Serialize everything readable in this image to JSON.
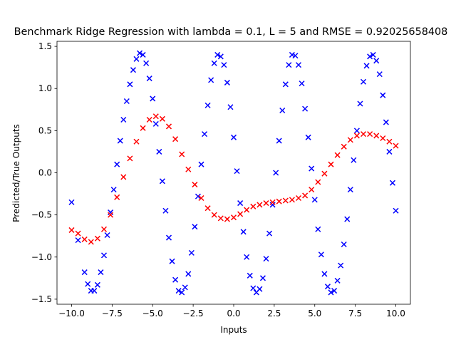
{
  "chart_data": {
    "type": "scatter",
    "title": "Benchmark Ridge Regression with lambda = 0.1, L = 5 and RMSE = 0.92025658408",
    "xlabel": "Inputs",
    "ylabel": "Predicted/True Outputs",
    "xlim": [
      -10.9,
      10.9
    ],
    "ylim": [
      -1.56,
      1.56
    ],
    "xticks": [
      -10.0,
      -7.5,
      -5.0,
      -2.5,
      0.0,
      2.5,
      5.0,
      7.5,
      10.0
    ],
    "xtick_labels": [
      "−10.0",
      "−7.5",
      "−5.0",
      "−2.5",
      "0.0",
      "2.5",
      "5.0",
      "7.5",
      "10.0"
    ],
    "yticks": [
      -1.5,
      -1.0,
      -0.5,
      0.0,
      0.5,
      1.0,
      1.5
    ],
    "ytick_labels": [
      "−1.5",
      "−1.0",
      "−0.5",
      "0.0",
      "0.5",
      "1.0",
      "1.5"
    ],
    "grid": false,
    "legend": "none",
    "marker": "x",
    "series": [
      {
        "color": "#0000ff",
        "x": [
          -10.0,
          -9.6,
          -9.2,
          -9.0,
          -8.8,
          -8.6,
          -8.4,
          -8.2,
          -8.0,
          -7.8,
          -7.6,
          -7.4,
          -7.2,
          -7.0,
          -6.8,
          -6.6,
          -6.4,
          -6.2,
          -6.0,
          -5.8,
          -5.6,
          -5.4,
          -5.2,
          -5.0,
          -4.8,
          -4.6,
          -4.4,
          -4.2,
          -4.0,
          -3.8,
          -3.6,
          -3.4,
          -3.2,
          -3.0,
          -2.8,
          -2.6,
          -2.4,
          -2.2,
          -2.0,
          -1.8,
          -1.6,
          -1.4,
          -1.2,
          -1.0,
          -0.8,
          -0.6,
          -0.4,
          -0.2,
          0.0,
          0.2,
          0.4,
          0.6,
          0.8,
          1.0,
          1.2,
          1.4,
          1.6,
          1.8,
          2.0,
          2.2,
          2.4,
          2.6,
          2.8,
          3.0,
          3.2,
          3.4,
          3.6,
          3.8,
          4.0,
          4.2,
          4.4,
          4.6,
          4.8,
          5.0,
          5.2,
          5.4,
          5.6,
          5.8,
          6.0,
          6.2,
          6.4,
          6.6,
          6.8,
          7.0,
          7.2,
          7.4,
          7.6,
          7.8,
          8.0,
          8.2,
          8.4,
          8.6,
          8.8,
          9.0,
          9.2,
          9.4,
          9.6,
          9.8,
          10.0
        ],
        "y": [
          -0.35,
          -0.8,
          -1.18,
          -1.32,
          -1.4,
          -1.4,
          -1.33,
          -1.18,
          -0.98,
          -0.74,
          -0.47,
          -0.2,
          0.1,
          0.38,
          0.63,
          0.85,
          1.05,
          1.22,
          1.35,
          1.42,
          1.4,
          1.3,
          1.12,
          0.88,
          0.58,
          0.25,
          -0.1,
          -0.45,
          -0.77,
          -1.05,
          -1.27,
          -1.4,
          -1.42,
          -1.36,
          -1.2,
          -0.95,
          -0.64,
          -0.28,
          0.1,
          0.46,
          0.8,
          1.1,
          1.3,
          1.4,
          1.38,
          1.28,
          1.07,
          0.78,
          0.42,
          0.02,
          -0.36,
          -0.7,
          -1.0,
          -1.22,
          -1.37,
          -1.42,
          -1.38,
          -1.25,
          -1.02,
          -0.72,
          -0.38,
          0.0,
          0.38,
          0.74,
          1.05,
          1.28,
          1.4,
          1.39,
          1.28,
          1.06,
          0.76,
          0.42,
          0.05,
          -0.32,
          -0.67,
          -0.97,
          -1.2,
          -1.35,
          -1.42,
          -1.4,
          -1.28,
          -1.1,
          -0.85,
          -0.55,
          -0.2,
          0.15,
          0.5,
          0.82,
          1.08,
          1.27,
          1.38,
          1.4,
          1.33,
          1.17,
          0.92,
          0.6,
          0.25,
          -0.12,
          -0.45
        ]
      },
      {
        "color": "#ff0000",
        "x": [
          -10.0,
          -9.6,
          -9.2,
          -8.8,
          -8.4,
          -8.0,
          -7.6,
          -7.2,
          -6.8,
          -6.4,
          -6.0,
          -5.6,
          -5.2,
          -4.8,
          -4.4,
          -4.0,
          -3.6,
          -3.2,
          -2.8,
          -2.4,
          -2.0,
          -1.6,
          -1.2,
          -0.8,
          -0.4,
          0.0,
          0.4,
          0.8,
          1.2,
          1.6,
          2.0,
          2.4,
          2.8,
          3.2,
          3.6,
          4.0,
          4.4,
          4.8,
          5.2,
          5.6,
          6.0,
          6.4,
          6.8,
          7.2,
          7.6,
          8.0,
          8.4,
          8.8,
          9.2,
          9.6,
          10.0
        ],
        "y": [
          -0.68,
          -0.72,
          -0.79,
          -0.82,
          -0.78,
          -0.67,
          -0.5,
          -0.29,
          -0.05,
          0.17,
          0.37,
          0.53,
          0.63,
          0.67,
          0.64,
          0.55,
          0.4,
          0.22,
          0.04,
          -0.14,
          -0.3,
          -0.42,
          -0.5,
          -0.54,
          -0.55,
          -0.53,
          -0.49,
          -0.44,
          -0.4,
          -0.38,
          -0.36,
          -0.35,
          -0.34,
          -0.33,
          -0.32,
          -0.3,
          -0.27,
          -0.2,
          -0.11,
          -0.01,
          0.1,
          0.21,
          0.31,
          0.39,
          0.44,
          0.46,
          0.46,
          0.44,
          0.41,
          0.37,
          0.32
        ]
      }
    ]
  }
}
